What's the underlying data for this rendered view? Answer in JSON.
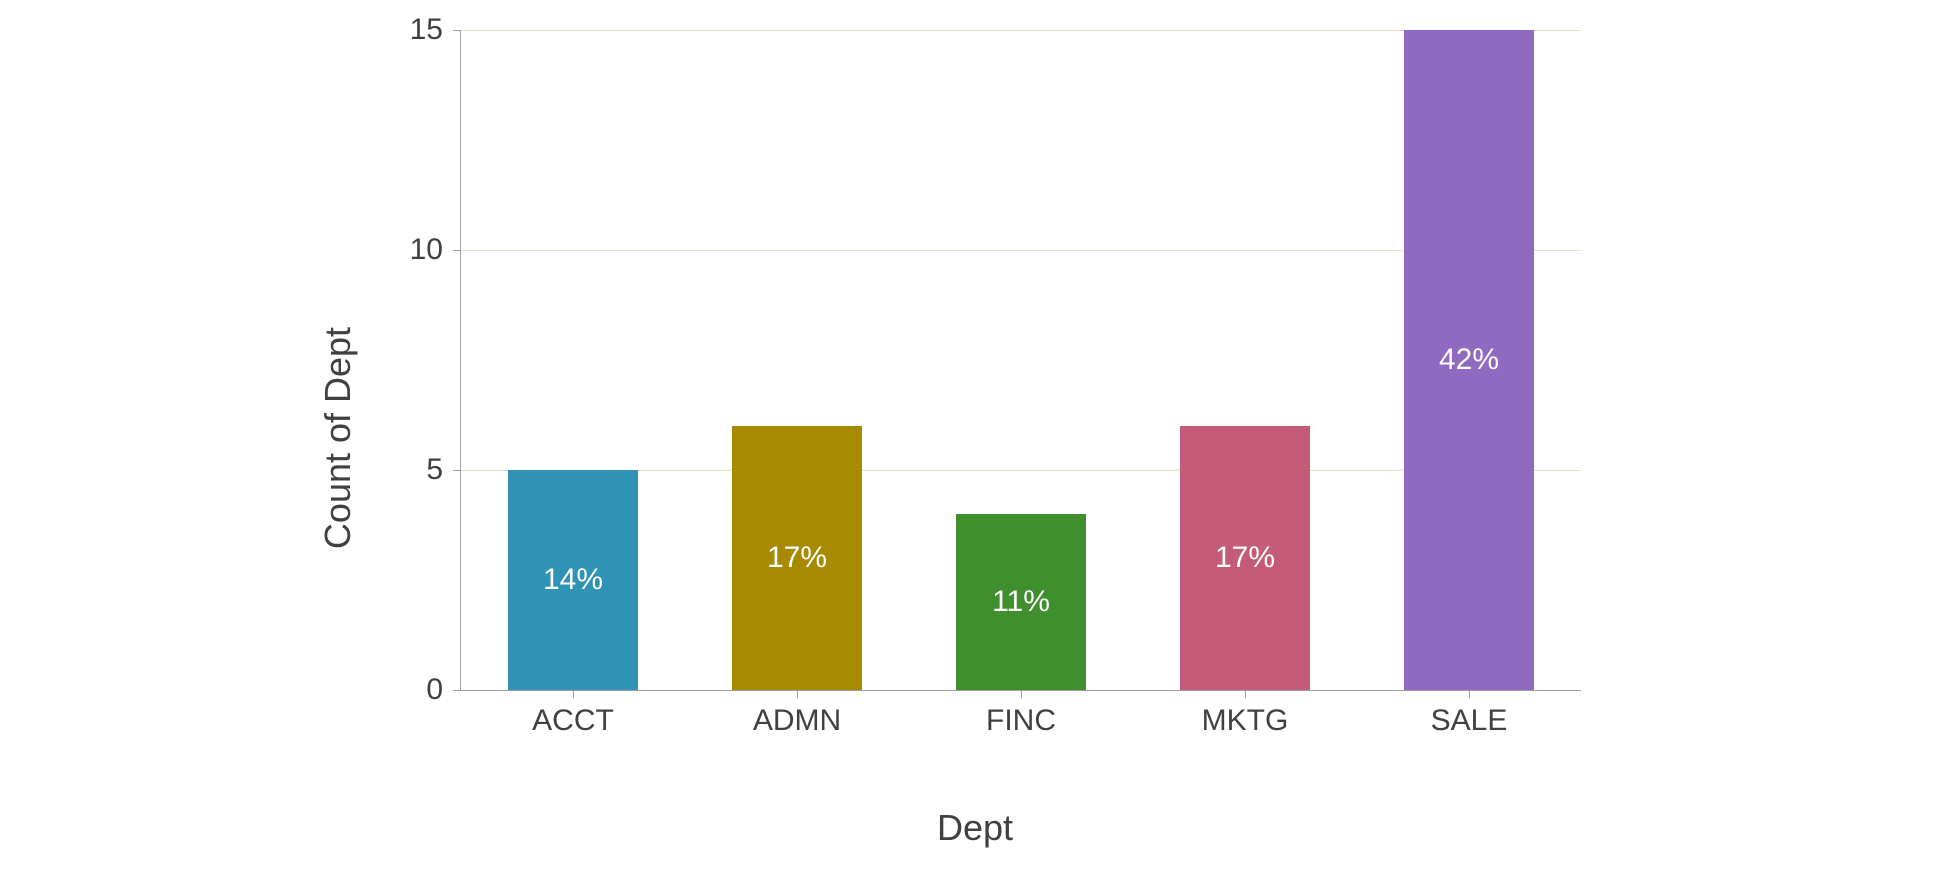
{
  "chart": {
    "type": "bar",
    "xlabel": "Dept",
    "ylabel": "Count of Dept",
    "label_fontsize": 36,
    "tick_fontsize": 30,
    "bar_label_fontsize": 30,
    "bar_label_color": "#ffffff",
    "axis_text_color": "#404040",
    "axis_line_color": "#9e9e9e",
    "background_color": "#ffffff",
    "grid_color": "#e6dfc8",
    "grid_on": true,
    "ylim": [
      0,
      15
    ],
    "yticks": [
      0,
      5,
      10,
      15
    ],
    "bar_width": 0.58,
    "categories": [
      "ACCT",
      "ADMN",
      "FINC",
      "MKTG",
      "SALE"
    ],
    "values": [
      5,
      6,
      4,
      6,
      15
    ],
    "percent_labels": [
      "14%",
      "17%",
      "11%",
      "17%",
      "42%"
    ],
    "bar_colors": [
      "#2e93b5",
      "#a78a00",
      "#3f8f2e",
      "#c45b78",
      "#9069c0"
    ]
  }
}
